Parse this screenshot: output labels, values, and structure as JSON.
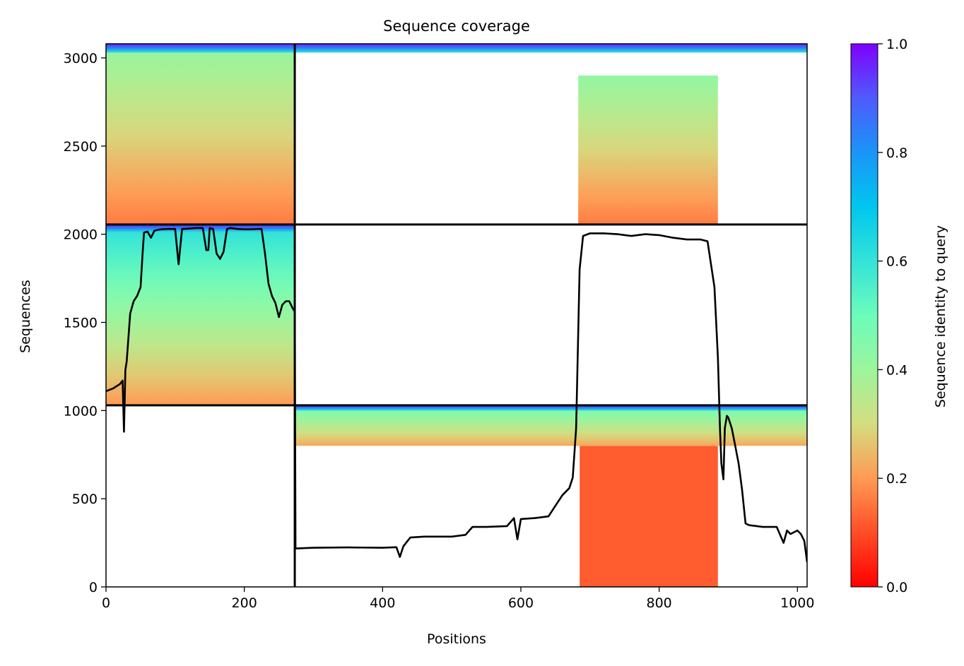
{
  "chart_data": {
    "type": "heatmap",
    "title": "Sequence coverage",
    "xlabel": "Positions",
    "ylabel": "Sequences",
    "xlim": [
      0,
      1014
    ],
    "ylim": [
      0,
      3080
    ],
    "xticks": [
      0,
      200,
      400,
      600,
      800,
      1000
    ],
    "yticks": [
      0,
      500,
      1000,
      1500,
      2000,
      2500,
      3000
    ],
    "colorbar": {
      "label": "Sequence identity to query",
      "range": [
        0,
        1
      ],
      "ticks": [
        0.0,
        0.2,
        0.4,
        0.6,
        0.8,
        1.0
      ],
      "tick_labels": [
        "0.0",
        "0.2",
        "0.4",
        "0.6",
        "0.8",
        "1.0"
      ],
      "colormap": "rainbow_r"
    },
    "chain_boundaries": {
      "positions": [
        273
      ],
      "sequences": [
        1030,
        2055
      ]
    },
    "coverage_blocks": [
      {
        "name": "chain-A-self",
        "x": [
          0,
          273
        ],
        "y": [
          1030,
          2055
        ],
        "identity_top": 0.62,
        "identity_bottom": 0.2
      },
      {
        "name": "chain-A-paired",
        "x": [
          0,
          273
        ],
        "y": [
          2055,
          3080
        ],
        "identity_top": 0.42,
        "identity_bottom": 0.16
      },
      {
        "name": "chain-B-domain-paired",
        "x": [
          683,
          885
        ],
        "y": [
          2055,
          2900
        ],
        "identity_top": 0.42,
        "identity_bottom": 0.16
      },
      {
        "name": "chain-B-domain-self",
        "x": [
          685,
          885
        ],
        "y": [
          0,
          800
        ],
        "identity_top": 0.12,
        "identity_bottom": 0.12
      },
      {
        "name": "chain-B-full-self",
        "x": [
          273,
          1014
        ],
        "y": [
          800,
          1030
        ],
        "identity_top": 0.5,
        "identity_bottom": 0.22
      }
    ],
    "coverage_line": {
      "x": [
        0,
        10,
        20,
        24,
        26,
        28,
        30,
        35,
        40,
        45,
        50,
        53,
        55,
        60,
        65,
        70,
        75,
        80,
        90,
        100,
        105,
        110,
        120,
        130,
        140,
        145,
        148,
        150,
        155,
        160,
        165,
        170,
        175,
        180,
        190,
        200,
        210,
        220,
        225,
        230,
        235,
        240,
        245,
        250,
        255,
        260,
        265,
        270,
        273,
        274,
        275,
        300,
        350,
        400,
        420,
        425,
        430,
        440,
        460,
        500,
        520,
        530,
        550,
        580,
        590,
        595,
        600,
        620,
        640,
        650,
        660,
        670,
        675,
        680,
        685,
        690,
        700,
        720,
        740,
        760,
        780,
        800,
        820,
        840,
        860,
        870,
        875,
        880,
        885,
        888,
        890,
        893,
        895,
        898,
        900,
        905,
        910,
        915,
        920,
        925,
        930,
        950,
        970,
        980,
        985,
        990,
        1000,
        1005,
        1010,
        1014
      ],
      "y": [
        1110,
        1125,
        1150,
        1170,
        880,
        1230,
        1280,
        1550,
        1620,
        1650,
        1700,
        1900,
        2010,
        2015,
        1980,
        2020,
        2025,
        2028,
        2030,
        2030,
        1830,
        2030,
        2032,
        2035,
        2035,
        1910,
        1910,
        2035,
        2030,
        1890,
        1860,
        1900,
        2030,
        2035,
        2030,
        2028,
        2028,
        2030,
        2030,
        1890,
        1720,
        1650,
        1610,
        1530,
        1600,
        1620,
        1620,
        1580,
        1560,
        220,
        218,
        222,
        224,
        222,
        225,
        170,
        230,
        280,
        285,
        285,
        295,
        340,
        340,
        345,
        390,
        270,
        385,
        390,
        400,
        460,
        520,
        560,
        620,
        900,
        1800,
        1990,
        2005,
        2005,
        2000,
        1990,
        2000,
        1995,
        1980,
        1970,
        1970,
        1960,
        1830,
        1700,
        1300,
        900,
        700,
        610,
        900,
        970,
        960,
        900,
        800,
        700,
        550,
        360,
        350,
        340,
        340,
        250,
        320,
        300,
        320,
        300,
        260,
        140
      ]
    }
  }
}
